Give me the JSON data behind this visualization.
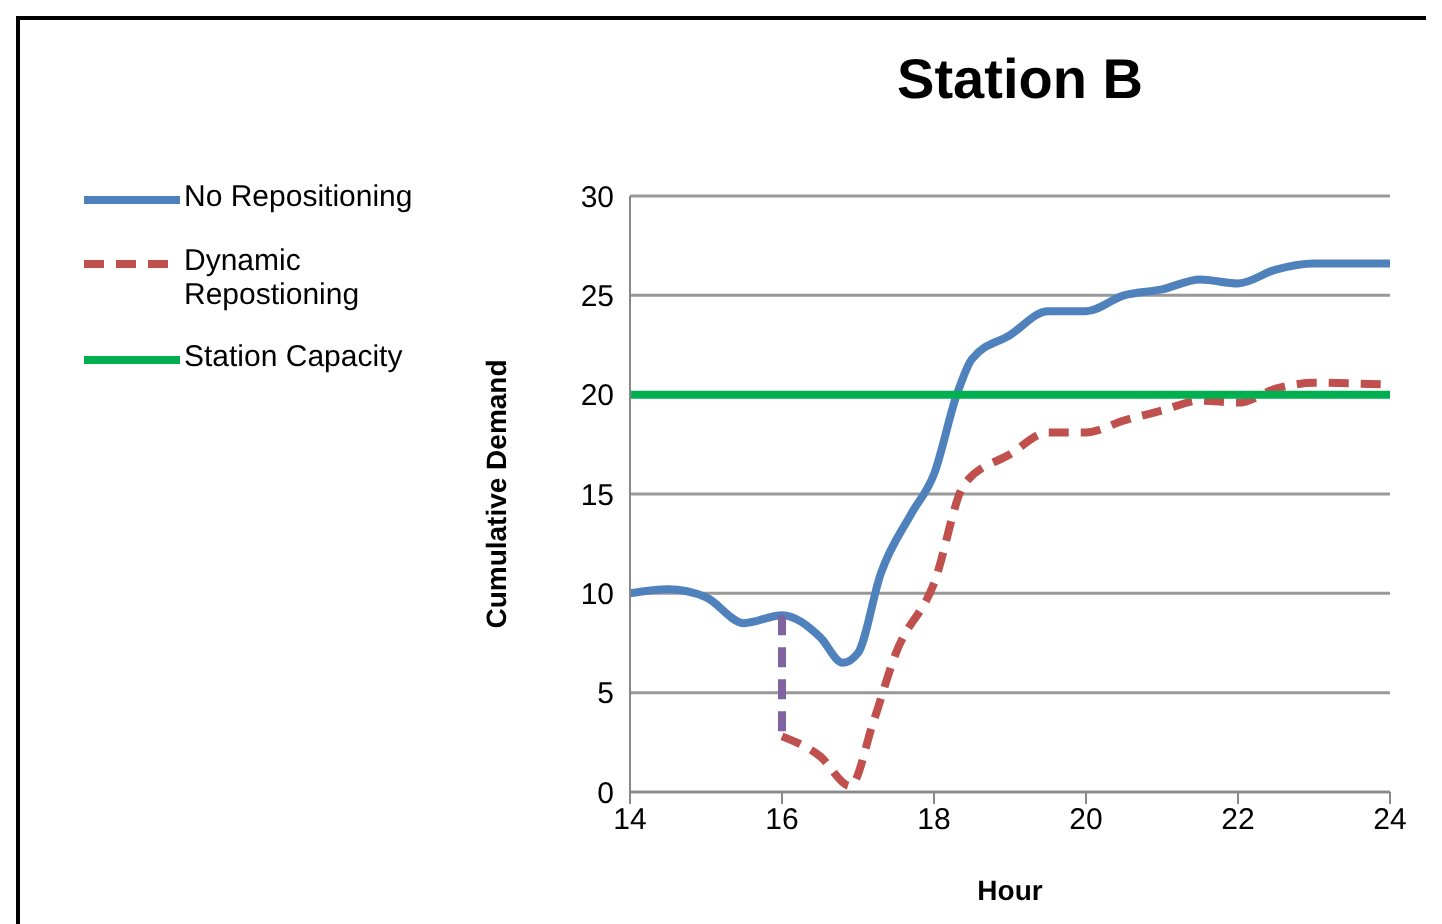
{
  "chart_data": {
    "type": "line",
    "title": "Station B",
    "xlabel": "Hour",
    "ylabel": "Cumulative Demand",
    "xlim": [
      14,
      24
    ],
    "xticks": [
      14,
      16,
      18,
      20,
      22,
      24
    ],
    "ylim": [
      0,
      30
    ],
    "yticks": [
      0,
      5,
      10,
      15,
      20,
      25,
      30
    ],
    "grid": "y",
    "legend": "left",
    "marker": "none",
    "series": [
      {
        "name": "No Repositioning",
        "color": "#4f81bd",
        "line_style": "solid",
        "x": [
          14,
          14.5,
          15,
          15.5,
          16,
          16.5,
          16.8,
          17,
          17.3,
          17.7,
          18,
          18.3,
          18.5,
          19,
          19.5,
          20,
          20.5,
          21,
          21.5,
          22,
          22.5,
          23,
          24
        ],
        "values": [
          10,
          10.2,
          9.8,
          8.5,
          8.9,
          7.8,
          6.5,
          7,
          11,
          14,
          16,
          20,
          21.8,
          23,
          24.2,
          24.2,
          25,
          25.3,
          25.8,
          25.6,
          26.3,
          26.6,
          26.6
        ]
      },
      {
        "name": "Dynamic Repostioning",
        "color": "#c0504d",
        "line_style": "dashed",
        "x": [
          16,
          16.5,
          16.9,
          17.2,
          17.5,
          18,
          18.4,
          19,
          19.5,
          20,
          20.5,
          21,
          21.5,
          22,
          22.5,
          23,
          24
        ],
        "values": [
          2.8,
          1.8,
          0.3,
          3.5,
          7,
          10.5,
          15.5,
          17,
          18.1,
          18.1,
          18.7,
          19.2,
          19.7,
          19.6,
          20.3,
          20.6,
          20.5
        ]
      },
      {
        "name": "Station Capacity",
        "color": "#00b050",
        "line_style": "solid",
        "x": [
          14,
          24
        ],
        "values": [
          20,
          20
        ]
      },
      {
        "color": "#8064a2",
        "line_style": "dashed",
        "x": [
          16,
          16
        ],
        "values": [
          8.9,
          2.8
        ]
      }
    ]
  }
}
